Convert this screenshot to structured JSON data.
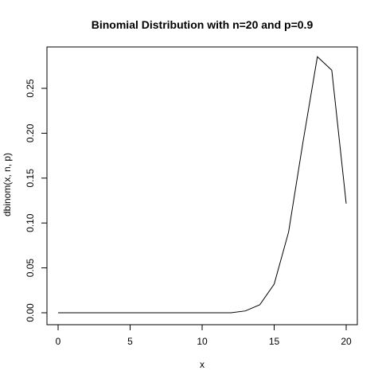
{
  "chart_data": {
    "type": "line",
    "title": "Binomial Distribution with n=20 and p=0.9",
    "xlabel": "x",
    "ylabel": "dbinom(x, n, p)",
    "xlim": [
      0,
      20
    ],
    "ylim": [
      0,
      0.285
    ],
    "x_ticks": [
      0,
      5,
      10,
      15,
      20
    ],
    "y_ticks": [
      0.0,
      0.05,
      0.1,
      0.15,
      0.2,
      0.25
    ],
    "y_tick_labels": [
      "0.00",
      "0.05",
      "0.10",
      "0.15",
      "0.20",
      "0.25"
    ],
    "x_tick_labels": [
      "0",
      "5",
      "10",
      "15",
      "20"
    ],
    "grid": false,
    "series": [
      {
        "x": [
          0,
          1,
          2,
          3,
          4,
          5,
          6,
          7,
          8,
          9,
          10,
          11,
          12,
          13,
          14,
          15,
          16,
          17,
          18,
          19,
          20
        ],
        "y": [
          0,
          0,
          0,
          0,
          0,
          0,
          0,
          0,
          0,
          0,
          0,
          0,
          0,
          0.002,
          0.0089,
          0.0319,
          0.0898,
          0.1901,
          0.2852,
          0.2702,
          0.1216
        ]
      }
    ]
  }
}
